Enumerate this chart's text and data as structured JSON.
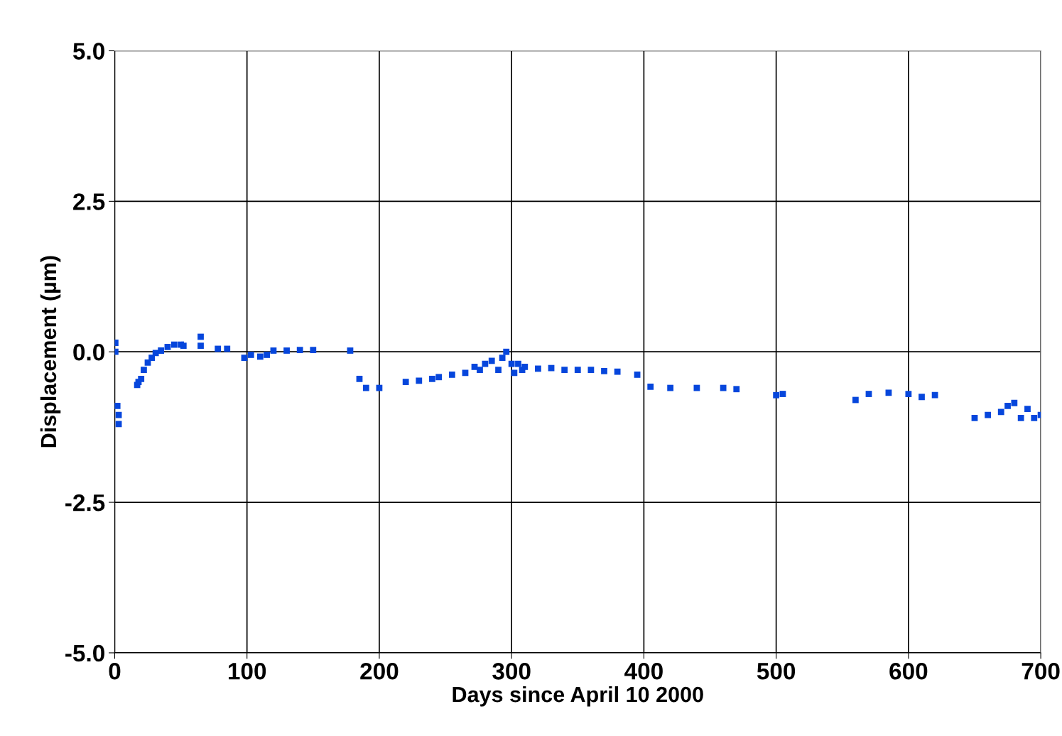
{
  "chart_data": {
    "type": "scatter",
    "xlabel": "Days since April 10 2000",
    "ylabel": "Displacement (µm)",
    "xlim": [
      0,
      700
    ],
    "xticks": [
      0,
      100,
      200,
      300,
      400,
      500,
      600,
      700
    ],
    "ylim": [
      -5,
      5
    ],
    "yticks": [
      {
        "value": -5,
        "label": "-5.0"
      },
      {
        "value": -2.5,
        "label": "-2.5"
      },
      {
        "value": 0,
        "label": "0.0"
      },
      {
        "value": 2.5,
        "label": "2.5"
      },
      {
        "value": 5,
        "label": "5.0"
      }
    ],
    "grid": true,
    "marker": "square",
    "legend": false,
    "series": [
      {
        "color": "#0646dc",
        "x": [
          0.5,
          0.5,
          2,
          3,
          3,
          17,
          18,
          20,
          22,
          25,
          28,
          31,
          35,
          40,
          45,
          50,
          52,
          65,
          65,
          78,
          85,
          98,
          103,
          110,
          115,
          120,
          130,
          140,
          150,
          178,
          185,
          190,
          200,
          220,
          230,
          240,
          245,
          255,
          265,
          272,
          276,
          280,
          285,
          290,
          293,
          296,
          300,
          302,
          305,
          308,
          310,
          320,
          330,
          340,
          350,
          360,
          370,
          380,
          395,
          405,
          420,
          440,
          460,
          470,
          500,
          505,
          560,
          570,
          585,
          600,
          610,
          620,
          650,
          660,
          670,
          675,
          680,
          685,
          690,
          695,
          700
        ],
        "values": [
          0.15,
          0.0,
          -0.9,
          -1.05,
          -1.2,
          -0.55,
          -0.5,
          -0.45,
          -0.3,
          -0.18,
          -0.1,
          -0.02,
          0.02,
          0.08,
          0.12,
          0.12,
          0.1,
          0.25,
          0.1,
          0.05,
          0.05,
          -0.1,
          -0.05,
          -0.08,
          -0.05,
          0.02,
          0.02,
          0.03,
          0.03,
          0.02,
          -0.45,
          -0.6,
          -0.6,
          -0.5,
          -0.48,
          -0.45,
          -0.42,
          -0.38,
          -0.35,
          -0.25,
          -0.3,
          -0.2,
          -0.15,
          -0.3,
          -0.1,
          0.0,
          -0.2,
          -0.35,
          -0.2,
          -0.3,
          -0.25,
          -0.28,
          -0.27,
          -0.3,
          -0.3,
          -0.3,
          -0.32,
          -0.33,
          -0.38,
          -0.58,
          -0.6,
          -0.6,
          -0.6,
          -0.62,
          -0.72,
          -0.7,
          -0.8,
          -0.7,
          -0.68,
          -0.7,
          -0.75,
          -0.72,
          -1.1,
          -1.05,
          -1.0,
          -0.9,
          -0.85,
          -1.1,
          -0.95,
          -1.1,
          -1.05
        ]
      }
    ]
  }
}
